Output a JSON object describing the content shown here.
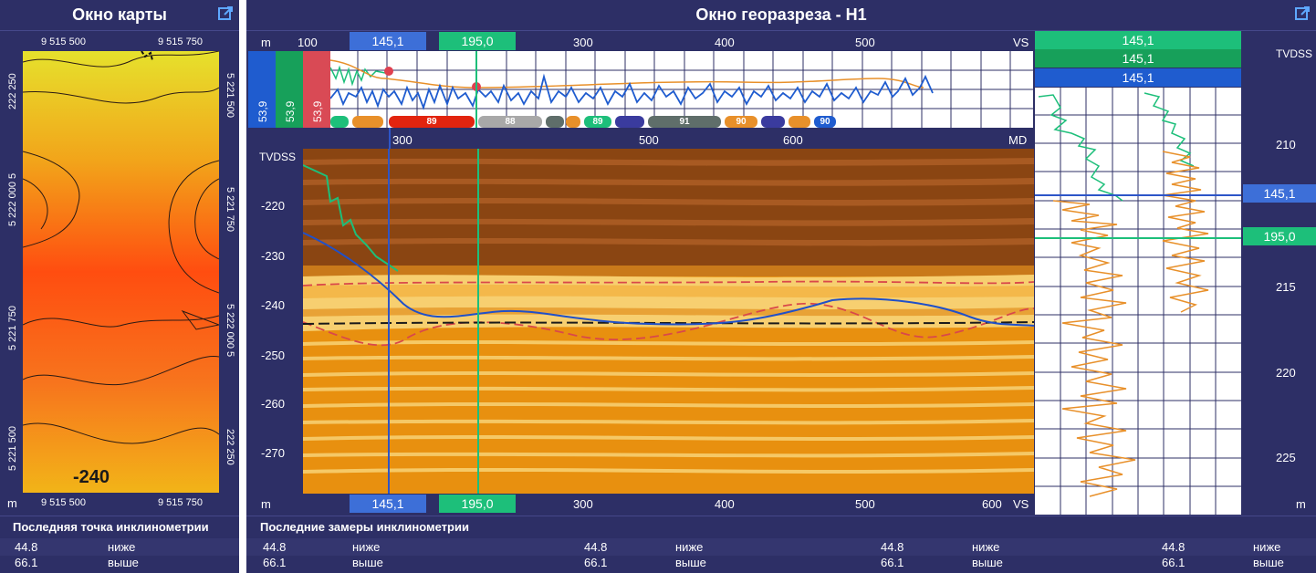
{
  "map_panel": {
    "title": "Окно карты",
    "top_ticks": [
      "9 515 500",
      "9 515 750"
    ],
    "bottom_ticks": [
      "9 515 500",
      "9 515 750"
    ],
    "left_ticks": [
      "222 250",
      "5 222 000 5",
      "5 221 750",
      "5 221 500"
    ],
    "right_ticks": [
      "5 221 500",
      "5 221 750",
      "5 222 000 5",
      "222 250"
    ],
    "unit": "m",
    "contour_label": "-240",
    "bottom_title": "Последняя точка инклинометрии",
    "rows": [
      {
        "value": "44.8",
        "label": "ниже"
      },
      {
        "value": "66.1",
        "label": "выше"
      }
    ]
  },
  "section_panel": {
    "title": "Окно георазреза - H1",
    "top_axis": {
      "unit": "m",
      "ticks": [
        "100",
        "300",
        "400",
        "500"
      ],
      "right": "VS"
    },
    "marker_a": "145,1",
    "marker_b": "195,0",
    "strip_values": [
      "53,9",
      "53,9",
      "53,9"
    ],
    "zone_labels": [
      "89",
      "88",
      "89",
      "91",
      "90",
      "90"
    ],
    "md_axis": {
      "ticks": [
        "300",
        "500",
        "600"
      ],
      "unit": "MD"
    },
    "depth_axis": {
      "title": "TVDSS",
      "ticks": [
        "-220",
        "-230",
        "-240",
        "-250",
        "-260",
        "-270"
      ]
    },
    "bottom_axis": {
      "unit": "m",
      "ticks": [
        "300",
        "400",
        "500",
        "600"
      ],
      "right": "VS"
    },
    "bottom_title": "Последние замеры инклинометрии",
    "rows": [
      {
        "v1": "44.8",
        "l1": "ниже",
        "v2": "44.8",
        "l2": "ниже",
        "v3": "44.8",
        "l3": "ниже",
        "v4": "44.8",
        "l4": "ниже"
      },
      {
        "v1": "66.1",
        "l1": "выше",
        "v2": "66.1",
        "l2": "выше",
        "v3": "66.1",
        "l3": "выше",
        "v4": "66.1",
        "l4": "выше"
      }
    ]
  },
  "log_panel": {
    "headers": [
      "145,1",
      "145,1",
      "145,1"
    ],
    "axis_title": "TVDSS",
    "ticks": [
      "210",
      "215",
      "220",
      "225"
    ],
    "unit": "m",
    "marker_a": "145,1",
    "marker_b": "195,0"
  },
  "colors": {
    "panel_bg": "#2d2f66",
    "blue_marker": "#3d6fd8",
    "green_marker": "#1dbf7a",
    "dark_green": "#17a05a",
    "red_strip": "#d94a55",
    "brown_layer": "#8a4512",
    "orange_layer": "#e8900f",
    "light_sand": "#f7cf70"
  }
}
